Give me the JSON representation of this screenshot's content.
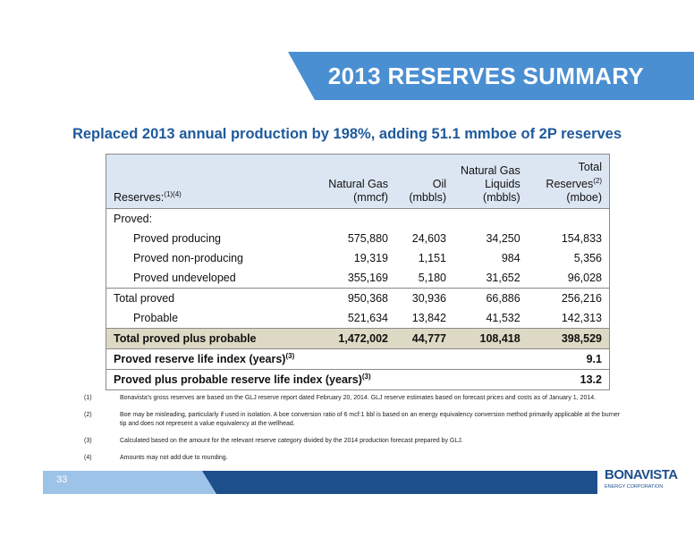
{
  "header": {
    "title": "2013 RESERVES SUMMARY"
  },
  "subtitle": "Replaced 2013 annual production by 198%, adding 51.1 mmboe of 2P reserves",
  "table": {
    "columns": [
      [
        "Reserves:",
        "(1)(4)"
      ],
      [
        "Natural Gas",
        "(mmcf)"
      ],
      [
        "Oil",
        "(mbbls)"
      ],
      [
        "Natural Gas",
        "Liquids",
        "(mbbls)"
      ],
      [
        "Total",
        "Reserves",
        "(2)",
        "(mboe)"
      ]
    ],
    "rows": [
      [
        "Proved:"
      ],
      [
        "Proved producing",
        "575,880",
        "24,603",
        "34,250",
        "154,833"
      ],
      [
        "Proved non-producing",
        "19,319",
        "1,151",
        "984",
        "5,356"
      ],
      [
        "Proved undeveloped",
        "355,169",
        "5,180",
        "31,652",
        "96,028"
      ],
      [
        "Total proved",
        "950,368",
        "30,936",
        "66,886",
        "256,216"
      ],
      [
        "Probable",
        "521,634",
        "13,842",
        "41,532",
        "142,313"
      ],
      [
        "Total proved plus probable",
        "1,472,002",
        "44,777",
        "108,418",
        "398,529"
      ],
      [
        "Proved reserve life index (years)",
        "(3)",
        "9.1"
      ],
      [
        "Proved plus probable reserve life index (years)",
        "(3)",
        "13.2"
      ]
    ]
  },
  "footnotes": [
    [
      "(1)",
      "Bonavista's gross reserves are based on the GLJ reserve report dated February 20, 2014. GLJ reserve estimates based on forecast prices and costs as of January 1, 2014."
    ],
    [
      "(2)",
      "Boe may be misleading, particularly if used in isolation. A boe conversion ratio of 6 mcf:1 bbl is based on an energy equivalency conversion method primarily applicable at the burner tip and does not represent a value equivalency at the wellhead."
    ],
    [
      "(3)",
      "Calculated based on the amount for the relevant reserve category divided by the 2014 production forecast prepared by GLJ."
    ],
    [
      "(4)",
      "Amounts may not add due to rounding."
    ]
  ],
  "footer": {
    "page": "33",
    "logo": "BONAVISTA",
    "logo_sub": "ENERGY CORPORATION"
  }
}
